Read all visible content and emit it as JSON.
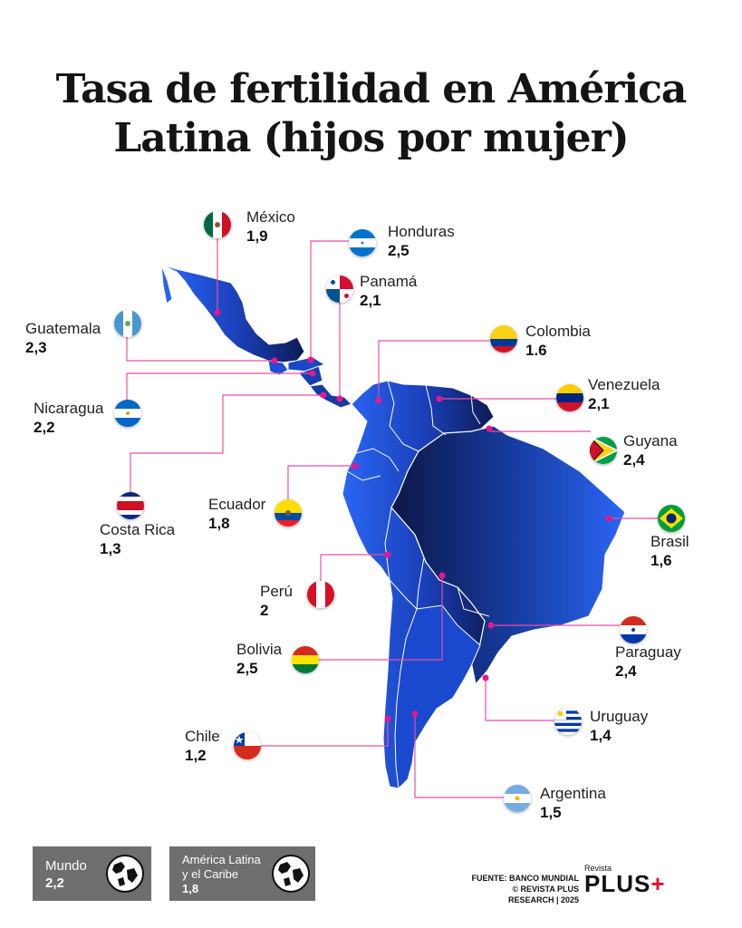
{
  "title": {
    "line1": "Tasa de fertilidad en América",
    "line2": "Latina (hijos por mujer)"
  },
  "countries": [
    {
      "name": "México",
      "value": "1,9",
      "flag": "mexico-flag"
    },
    {
      "name": "Honduras",
      "value": "2,5",
      "flag": "honduras-flag"
    },
    {
      "name": "Panamá",
      "value": "2,1",
      "flag": "panama-flag"
    },
    {
      "name": "Guatemala",
      "value": "2,3",
      "flag": "guatemala-flag"
    },
    {
      "name": "Colombia",
      "value": "1.6",
      "flag": "colombia-flag"
    },
    {
      "name": "Nicaragua",
      "value": "2,2",
      "flag": "nicaragua-flag"
    },
    {
      "name": "Venezuela",
      "value": "2,1",
      "flag": "venezuela-flag"
    },
    {
      "name": "Guyana",
      "value": "2,4",
      "flag": "guyana-flag"
    },
    {
      "name": "Ecuador",
      "value": "1,8",
      "flag": "ecuador-flag"
    },
    {
      "name": "Costa Rica",
      "value": "1,3",
      "flag": "costa-rica-flag"
    },
    {
      "name": "Brasil",
      "value": "1,6",
      "flag": "brazil-flag"
    },
    {
      "name": "Perú",
      "value": "2",
      "flag": "peru-flag"
    },
    {
      "name": "Bolivia",
      "value": "2,5",
      "flag": "bolivia-flag"
    },
    {
      "name": "Paraguay",
      "value": "2,4",
      "flag": "paraguay-flag"
    },
    {
      "name": "Uruguay",
      "value": "1,4",
      "flag": "uruguay-flag"
    },
    {
      "name": "Chile",
      "value": "1,2",
      "flag": "chile-flag"
    },
    {
      "name": "Argentina",
      "value": "1,5",
      "flag": "argentina-flag"
    }
  ],
  "summary": {
    "world": {
      "name": "Mundo",
      "value": "2,2",
      "icon": "globe-icon"
    },
    "latam": {
      "name_line1": "América Latina",
      "name_line2": "y el Caribe",
      "value": "1,8",
      "icon": "globe-icon"
    }
  },
  "footer": {
    "source_line1": "FUENTE: BANCO MUNDIAL",
    "source_line2": "© REVISTA PLUS RESEARCH | 2025",
    "brand_small": "Revista",
    "brand_name": "PLUS",
    "brand_mark": "+"
  },
  "colors": {
    "map_light": "#1f5df0",
    "map_dark": "#0d1a55",
    "leader_line": "#e84fa8",
    "marker": "#e8168e",
    "box_bg": "#6e6e6e",
    "brand_red": "#e3122b"
  }
}
